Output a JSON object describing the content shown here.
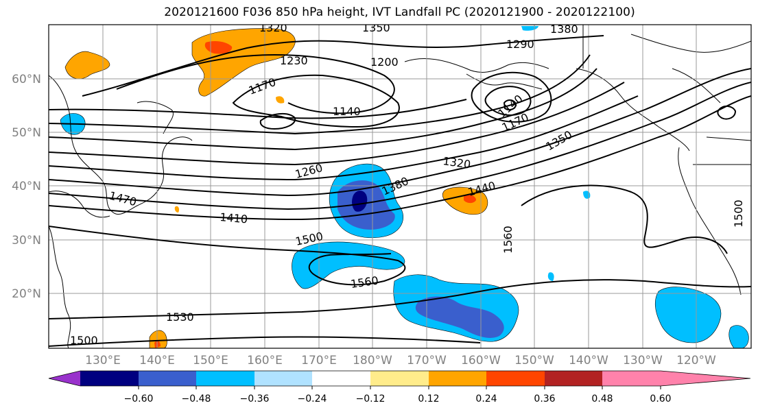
{
  "title": "2020121600 F036 850 hPa height, IVT Landfall PC (2020121900 - 2020122100)",
  "map": {
    "lat_labels": [
      "60°N",
      "50°N",
      "40°N",
      "30°N",
      "20°N"
    ],
    "lon_labels": [
      "130°E",
      "140°E",
      "150°E",
      "160°E",
      "170°E",
      "180°W",
      "170°W",
      "160°W",
      "150°W",
      "140°W",
      "130°W",
      "120°W"
    ],
    "contour_labels": [
      "1320",
      "1350",
      "1380",
      "1290",
      "1230",
      "1200",
      "1170",
      "1140",
      "1140",
      "1170",
      "1350",
      "1320",
      "1260",
      "1440",
      "1380",
      "1470",
      "1410",
      "1500",
      "1560",
      "1560",
      "1530",
      "1500",
      "1500"
    ],
    "colors": {
      "contour": "#000000",
      "coast": "#000000",
      "grid": "#999999",
      "shade_light_blue": "#b0e2ff",
      "shade_cyan": "#00bfff",
      "shade_blue": "#3a5fcd",
      "shade_navy": "#000080",
      "shade_yellow": "#ffec8b",
      "shade_orange": "#ffa500",
      "shade_red_orange": "#ff4500"
    }
  },
  "colorbar": {
    "ticks": [
      "−0.60",
      "−0.48",
      "−0.36",
      "−0.24",
      "−0.12",
      "0.12",
      "0.24",
      "0.36",
      "0.48",
      "0.60"
    ],
    "colors": [
      "#9932cc",
      "#000080",
      "#3a5fcd",
      "#00bfff",
      "#b0e2ff",
      "#ffffff",
      "#ffec8b",
      "#ffa500",
      "#ff4500",
      "#b22222",
      "#ff82ab"
    ]
  }
}
